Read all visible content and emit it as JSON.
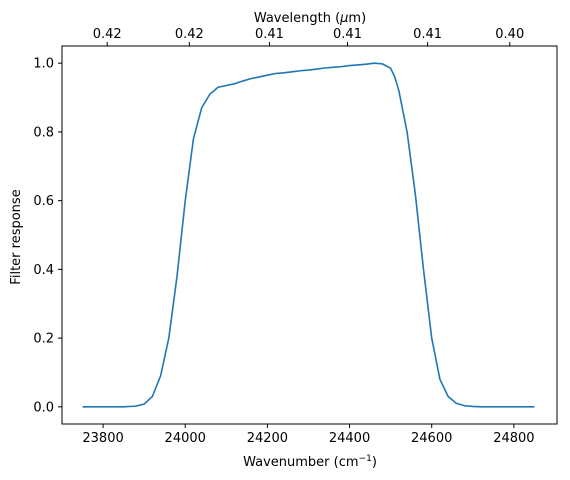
{
  "chart_data": {
    "type": "line",
    "xlabel": "Wavenumber (cm",
    "xlabel_sup": "−1",
    "xlabel_close": ")",
    "ylabel": "Filter response",
    "top_label_prefix": "Wavelength (",
    "top_label_unit_mu": "μ",
    "top_label_suffix": "m)",
    "xlim": [
      23700,
      24905
    ],
    "ylim": [
      -0.05,
      1.05
    ],
    "x_ticks": [
      {
        "value": 23800,
        "label": "23800"
      },
      {
        "value": 24000,
        "label": "24000"
      },
      {
        "value": 24200,
        "label": "24200"
      },
      {
        "value": 24400,
        "label": "24400"
      },
      {
        "value": 24600,
        "label": "24600"
      },
      {
        "value": 24800,
        "label": "24800"
      }
    ],
    "y_ticks": [
      {
        "value": 0.0,
        "label": "0.0"
      },
      {
        "value": 0.2,
        "label": "0.2"
      },
      {
        "value": 0.4,
        "label": "0.4"
      },
      {
        "value": 0.6,
        "label": "0.6"
      },
      {
        "value": 0.8,
        "label": "0.8"
      },
      {
        "value": 1.0,
        "label": "1.0"
      }
    ],
    "top_ticks": [
      {
        "value": 23810,
        "label": "0.42"
      },
      {
        "value": 24010,
        "label": "0.42"
      },
      {
        "value": 24205,
        "label": "0.41"
      },
      {
        "value": 24395,
        "label": "0.41"
      },
      {
        "value": 24590,
        "label": "0.41"
      },
      {
        "value": 24790,
        "label": "0.40"
      }
    ],
    "line_color": "#1f77b4",
    "series": [
      {
        "x": [
          23750,
          23800,
          23850,
          23880,
          23900,
          23920,
          23940,
          23960,
          23980,
          24000,
          24020,
          24040,
          24060,
          24080,
          24100,
          24120,
          24140,
          24160,
          24180,
          24200,
          24220,
          24240,
          24260,
          24280,
          24300,
          24320,
          24340,
          24360,
          24380,
          24400,
          24420,
          24440,
          24460,
          24480,
          24500,
          24510,
          24520,
          24540,
          24560,
          24580,
          24600,
          24620,
          24640,
          24660,
          24680,
          24700,
          24720,
          24750,
          24800,
          24850
        ],
        "y": [
          0.0,
          0.0,
          0.0,
          0.002,
          0.008,
          0.03,
          0.09,
          0.2,
          0.38,
          0.6,
          0.78,
          0.87,
          0.91,
          0.93,
          0.935,
          0.94,
          0.948,
          0.955,
          0.96,
          0.965,
          0.97,
          0.972,
          0.975,
          0.978,
          0.98,
          0.983,
          0.986,
          0.988,
          0.99,
          0.993,
          0.995,
          0.997,
          1.0,
          0.998,
          0.985,
          0.96,
          0.92,
          0.8,
          0.62,
          0.4,
          0.2,
          0.08,
          0.03,
          0.01,
          0.003,
          0.001,
          0.0,
          0.0,
          0.0,
          0.0
        ]
      }
    ]
  }
}
